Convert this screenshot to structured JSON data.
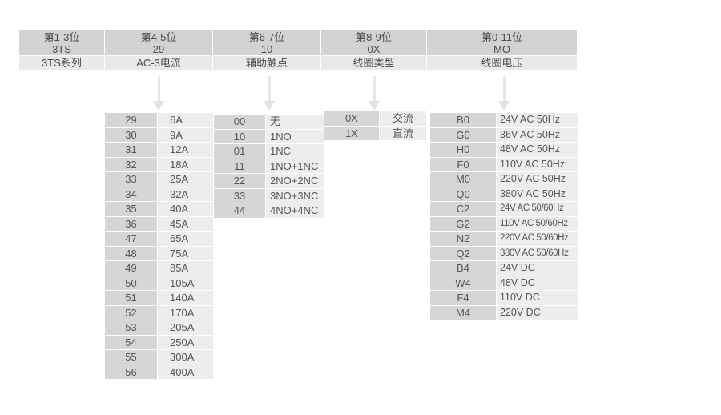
{
  "header": {
    "columns": [
      {
        "position": "第1-3位",
        "code": "3TS",
        "label": "3TS系列"
      },
      {
        "position": "第4-5位",
        "code": "29",
        "label": "AC-3电流"
      },
      {
        "position": "第6-7位",
        "code": "10",
        "label": "辅助触点"
      },
      {
        "position": "第8-9位",
        "code": "0X",
        "label": "线圈类型"
      },
      {
        "position": "第0-11位",
        "code": "MO",
        "label": "线圈电压"
      }
    ]
  },
  "tables": {
    "current": {
      "rows": [
        {
          "code": "29",
          "value": "6A"
        },
        {
          "code": "30",
          "value": "9A"
        },
        {
          "code": "31",
          "value": "12A"
        },
        {
          "code": "32",
          "value": "18A"
        },
        {
          "code": "33",
          "value": "25A"
        },
        {
          "code": "34",
          "value": "32A"
        },
        {
          "code": "35",
          "value": "40A"
        },
        {
          "code": "36",
          "value": "45A"
        },
        {
          "code": "47",
          "value": "65A"
        },
        {
          "code": "48",
          "value": "75A"
        },
        {
          "code": "49",
          "value": "85A"
        },
        {
          "code": "50",
          "value": "105A"
        },
        {
          "code": "51",
          "value": "140A"
        },
        {
          "code": "52",
          "value": "170A"
        },
        {
          "code": "53",
          "value": "205A"
        },
        {
          "code": "54",
          "value": "250A"
        },
        {
          "code": "55",
          "value": "300A"
        },
        {
          "code": "56",
          "value": "400A"
        }
      ]
    },
    "aux_contacts": {
      "rows": [
        {
          "code": "00",
          "value": "无"
        },
        {
          "code": "10",
          "value": "1NO"
        },
        {
          "code": "01",
          "value": "1NC"
        },
        {
          "code": "11",
          "value": "1NO+1NC"
        },
        {
          "code": "22",
          "value": "2NO+2NC"
        },
        {
          "code": "33",
          "value": "3NO+3NC"
        },
        {
          "code": "44",
          "value": "4NO+4NC"
        }
      ]
    },
    "coil_type": {
      "rows": [
        {
          "code": "0X",
          "value": "交流"
        },
        {
          "code": "1X",
          "value": "直流"
        }
      ]
    },
    "coil_voltage": {
      "rows": [
        {
          "code": "B0",
          "value": "24V AC 50Hz"
        },
        {
          "code": "G0",
          "value": "36V AC 50Hz"
        },
        {
          "code": "H0",
          "value": "48V AC 50Hz"
        },
        {
          "code": "F0",
          "value": "110V AC 50Hz"
        },
        {
          "code": "M0",
          "value": "220V AC 50Hz"
        },
        {
          "code": "Q0",
          "value": "380V AC 50Hz"
        },
        {
          "code": "C2",
          "value": "24V AC 50/60Hz"
        },
        {
          "code": "G2",
          "value": "110V AC 50/60Hz"
        },
        {
          "code": "N2",
          "value": "220V AC 50/60Hz"
        },
        {
          "code": "Q2",
          "value": "380V AC 50/60Hz"
        },
        {
          "code": "B4",
          "value": "24V DC"
        },
        {
          "code": "W4",
          "value": "48V DC"
        },
        {
          "code": "F4",
          "value": "110V DC"
        },
        {
          "code": "M4",
          "value": "220V DC"
        }
      ]
    }
  },
  "colors": {
    "header_top_bg": "#d2d2d2",
    "header_label_bg": "#e9e9e9",
    "code_cell_bg": "#d6d6d6",
    "value_cell_bg": "#ededed",
    "arrow": "#e2e2e2",
    "text": "#4f4f4f"
  }
}
